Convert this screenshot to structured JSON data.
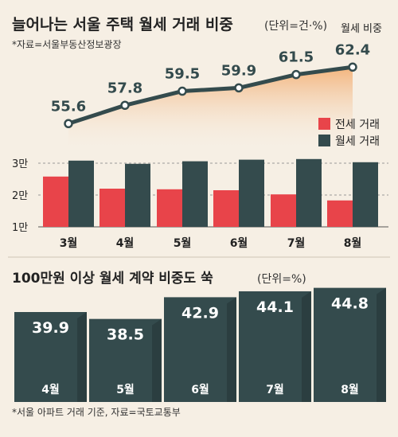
{
  "header": {
    "title": "늘어나는 서울 주택 월세 거래 비중",
    "unit": "(단위=건·%)",
    "source": "*자료=서울부동산정보광장"
  },
  "chart_data": [
    {
      "type": "line",
      "series_label": "월세 비중",
      "categories": [
        "3월",
        "4월",
        "5월",
        "6월",
        "7월",
        "8월"
      ],
      "values": [
        55.6,
        57.8,
        59.5,
        59.9,
        61.5,
        62.4
      ],
      "ylim": [
        54,
        63
      ]
    },
    {
      "type": "bar",
      "categories": [
        "3월",
        "4월",
        "5월",
        "6월",
        "7월",
        "8월"
      ],
      "yticks": [
        "1만",
        "2만",
        "3만"
      ],
      "ylim": [
        10000,
        30000
      ],
      "series": [
        {
          "name": "전세 거래",
          "color": "#e8444a",
          "values": [
            25800,
            22000,
            21800,
            21500,
            20200,
            18300
          ]
        },
        {
          "name": "월세 거래",
          "color": "#344b4d",
          "values": [
            30800,
            29800,
            30600,
            31100,
            31300,
            30300
          ]
        }
      ]
    },
    {
      "type": "bar",
      "title": "100만원 이상 월세 계약 비중도 쑥",
      "unit": "(단위=%)",
      "categories": [
        "4월",
        "5월",
        "6월",
        "7월",
        "8월"
      ],
      "values": [
        39.9,
        38.5,
        42.9,
        44.1,
        44.8
      ],
      "color": "#344b4d",
      "source": "*서울 아파트 거래 기준, 자료=국토교통부"
    }
  ],
  "colors": {
    "background": "#f6efe4",
    "line": "#344b4d",
    "area": "#f2a05a",
    "red": "#e8444a",
    "dark": "#344b4d",
    "text": "#222222"
  }
}
